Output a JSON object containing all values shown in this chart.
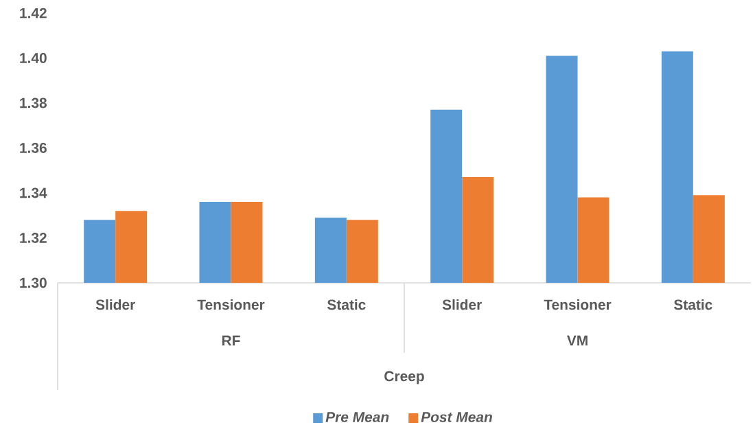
{
  "chart_data": {
    "type": "bar",
    "xlabel": "Creep",
    "categories": [
      "Slider",
      "Tensioner",
      "Static",
      "Slider",
      "Tensioner",
      "Static"
    ],
    "annotations": [
      "RF",
      "VM"
    ],
    "series": [
      {
        "name": "Pre Mean",
        "color": "#5b9bd5",
        "values": [
          1.328,
          1.336,
          1.329,
          1.377,
          1.401,
          1.403
        ]
      },
      {
        "name": "Post Mean",
        "color": "#ed7d31",
        "values": [
          1.332,
          1.336,
          1.328,
          1.347,
          1.338,
          1.339
        ]
      }
    ],
    "ylim": [
      1.3,
      1.42
    ],
    "yticks": [
      {
        "value": 1.3,
        "label": "1.30"
      },
      {
        "value": 1.32,
        "label": "1.32"
      },
      {
        "value": 1.34,
        "label": "1.34"
      },
      {
        "value": 1.36,
        "label": "1.36"
      },
      {
        "value": 1.38,
        "label": "1.38"
      },
      {
        "value": 1.4,
        "label": "1.40"
      },
      {
        "value": 1.42,
        "label": "1.42"
      }
    ],
    "legend": "bottom"
  }
}
